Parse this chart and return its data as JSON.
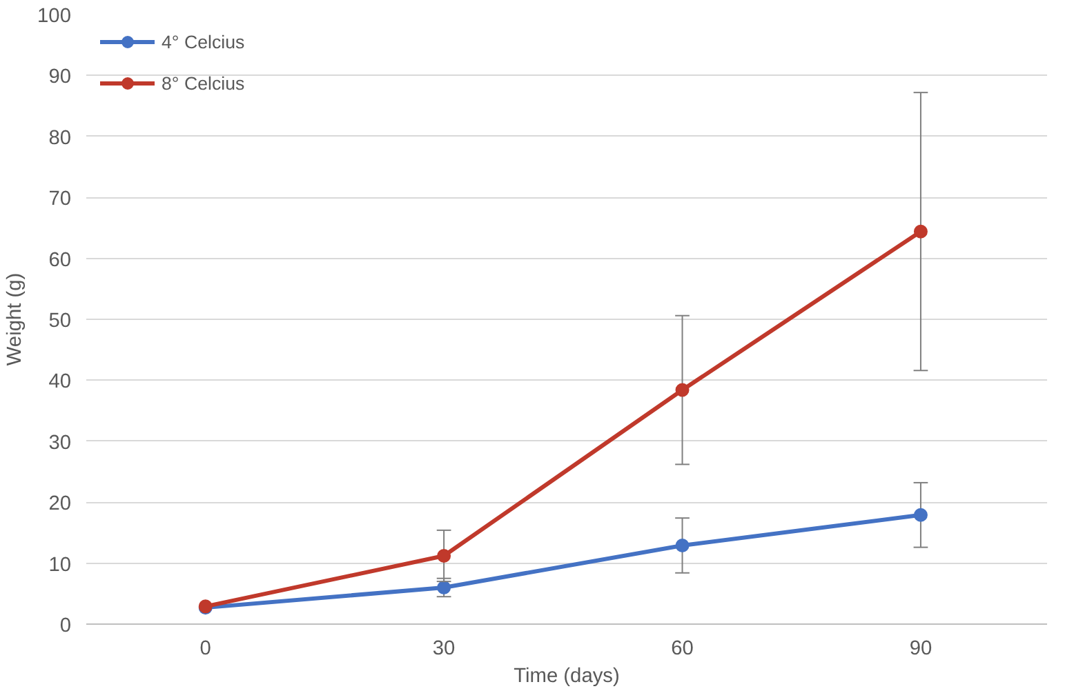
{
  "chart_data": {
    "type": "line",
    "xlabel": "Time (days)",
    "ylabel": "Weight (g)",
    "categories": [
      "0",
      "30",
      "60",
      "90"
    ],
    "series": [
      {
        "name": "4° Celcius",
        "color": "#4472c4",
        "values": [
          2.7,
          6.0,
          12.9,
          17.9
        ],
        "errors": [
          null,
          1.5,
          4.5,
          5.3
        ]
      },
      {
        "name": "8° Celcius",
        "color": "#c0392b",
        "values": [
          2.9,
          11.2,
          38.4,
          64.4
        ],
        "errors": [
          null,
          4.2,
          12.2,
          22.8
        ]
      }
    ],
    "ylim": [
      0,
      100
    ],
    "yticks": [
      0,
      10,
      20,
      30,
      40,
      50,
      60,
      70,
      80,
      90,
      100
    ],
    "grid": "y",
    "legend": "top left",
    "marker": "circle",
    "line_style": "solid"
  }
}
